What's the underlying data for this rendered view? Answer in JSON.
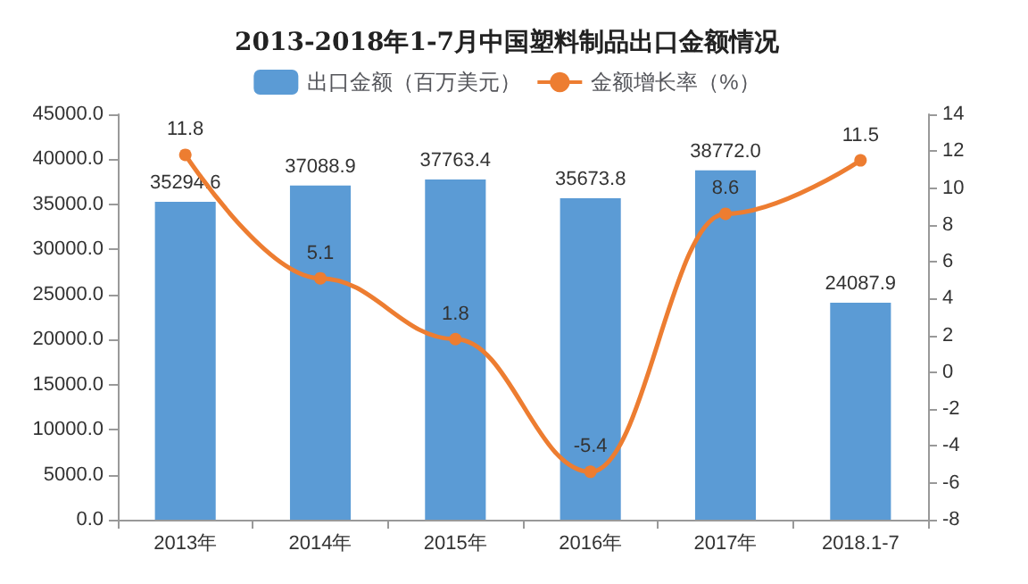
{
  "chart_data": {
    "type": "bar",
    "title": "2013-2018年1-7月中国塑料制品出口金额情况",
    "categories": [
      "2013年",
      "2014年",
      "2015年",
      "2016年",
      "2017年",
      "2018.1-7"
    ],
    "series": [
      {
        "name": "出口金额（百万美元）",
        "color": "#5b9bd5",
        "values": [
          35294.6,
          37088.9,
          37763.4,
          35673.8,
          38772.0,
          24087.9
        ],
        "value_labels": [
          "35294.6",
          "37088.9",
          "37763.4",
          "35673.8",
          "38772.0",
          "24087.9"
        ]
      },
      {
        "name": "金额增长率（%）",
        "type": "line",
        "axis": "y2",
        "color": "#ed7d31",
        "values": [
          11.8,
          5.1,
          1.8,
          -5.4,
          8.6,
          11.5
        ],
        "value_labels": [
          "11.8",
          "5.1",
          "1.8",
          "-5.4",
          "8.6",
          "11.5"
        ]
      }
    ],
    "ylim": [
      0,
      45000
    ],
    "yticks": [
      {
        "value": 0,
        "label": "0.0"
      },
      {
        "value": 5000,
        "label": "5000.0"
      },
      {
        "value": 10000,
        "label": "10000.0"
      },
      {
        "value": 15000,
        "label": "15000.0"
      },
      {
        "value": 20000,
        "label": "20000.0"
      },
      {
        "value": 25000,
        "label": "25000.0"
      },
      {
        "value": 30000,
        "label": "30000.0"
      },
      {
        "value": 35000,
        "label": "35000.0"
      },
      {
        "value": 40000,
        "label": "40000.0"
      },
      {
        "value": 45000,
        "label": "45000.0"
      }
    ],
    "y2lim": [
      -8,
      14
    ],
    "y2ticks": [
      -8,
      -6,
      -4,
      -2,
      0,
      2,
      4,
      6,
      8,
      10,
      12,
      14
    ],
    "legend": "top",
    "grid": false,
    "marker": "circle"
  }
}
